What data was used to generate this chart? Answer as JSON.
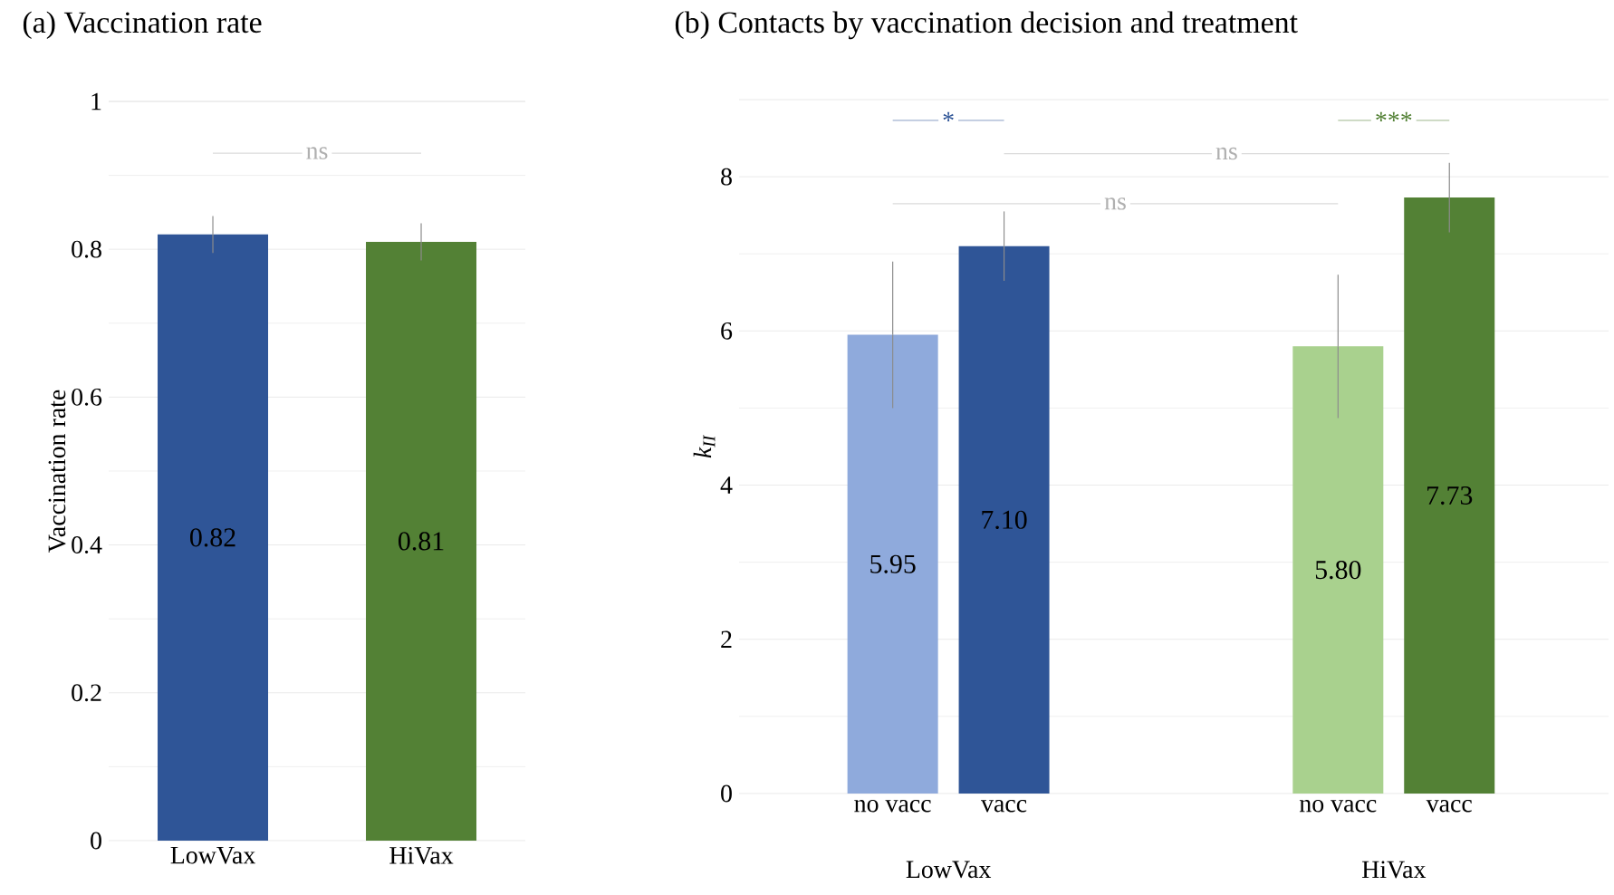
{
  "chart_data": [
    {
      "type": "bar",
      "title": "(a) Vaccination rate",
      "ylabel": "Vaccination rate",
      "categories": [
        "LowVax",
        "HiVax"
      ],
      "values": [
        0.82,
        0.81
      ],
      "colors": [
        "#2f5597",
        "#538135"
      ],
      "errors": [
        0.025,
        0.025
      ],
      "data_labels": true,
      "ylim": [
        0,
        1
      ],
      "yticks": [
        0,
        0.2,
        0.4,
        0.6,
        0.8,
        1
      ],
      "grid": "y",
      "annotations": [
        "ns"
      ]
    },
    {
      "type": "bar",
      "title": "(b) Contacts by vaccination decision and treatment",
      "ylabel": "*k$_{II}$*",
      "categories": [
        "no vacc",
        "vacc",
        null,
        null,
        "no vacc",
        "vacc"
      ],
      "values": [
        5.95,
        7.1,
        null,
        null,
        5.8,
        7.73
      ],
      "colors": [
        "#8faadc",
        "#2f5597",
        "#ffffff",
        "#ffffff",
        "#a9d18e",
        "#538135"
      ],
      "errors": [
        0.95,
        0.45,
        null,
        null,
        0.93,
        0.45
      ],
      "value_labels": [
        "5.95",
        "7.10",
        null,
        null,
        "5.80",
        "7.73"
      ],
      "ylim": [
        0,
        9
      ],
      "yticks": [
        0,
        2,
        4,
        6,
        8
      ],
      "grid": "y",
      "annotations": [
        "*",
        "***",
        "ns",
        "ns",
        "LowVax",
        "HiVax"
      ]
    }
  ]
}
